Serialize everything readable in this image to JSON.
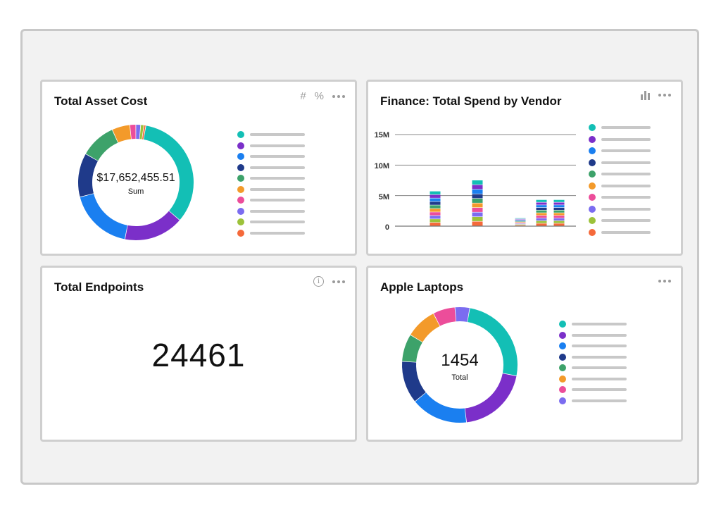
{
  "colors": [
    "#13bfb5",
    "#7b2fc9",
    "#1a7ff0",
    "#1f3a8a",
    "#3da26a",
    "#f39a2a",
    "#ec4d9a",
    "#7b6cf0",
    "#9cc23a",
    "#f5693a"
  ],
  "cards": {
    "asset_cost": {
      "title": "Total Asset Cost",
      "center_value": "$17,652,455.51",
      "center_label": "Sum",
      "tool_hash": "#",
      "tool_pct": "%",
      "donut": [
        0.3,
        0.15,
        0.16,
        0.11,
        0.09,
        0.045,
        0.015,
        0.012,
        0.008,
        0.005
      ]
    },
    "spend_by_vendor": {
      "title": "Finance: Total Spend by Vendor",
      "y_ticks": [
        "15M",
        "10M",
        "5M",
        "0"
      ]
    },
    "endpoints": {
      "title": "Total Endpoints",
      "value": "24461",
      "info_glyph": "i"
    },
    "apple_laptops": {
      "title": "Apple Laptops",
      "center_value": "1454",
      "center_label": "Total",
      "donut": [
        0.245,
        0.195,
        0.155,
        0.115,
        0.075,
        0.085,
        0.06,
        0.04
      ]
    }
  },
  "chart_data": {
    "type": "bar",
    "stacked": true,
    "title": "Finance: Total Spend by Vendor",
    "ylim": [
      0,
      15000000
    ],
    "y_ticks": [
      0,
      5000000,
      10000000,
      15000000
    ],
    "grid": true,
    "legend": "right",
    "totals": [
      5700000,
      7500000,
      1300000,
      4300000,
      4300000
    ],
    "segments_per_bar": 10
  }
}
